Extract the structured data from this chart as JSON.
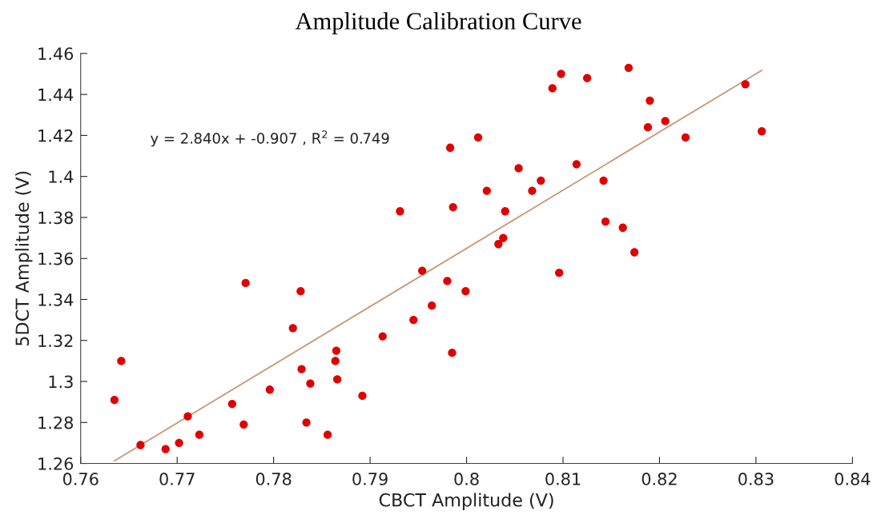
{
  "chart_data": {
    "type": "scatter",
    "title": "Amplitude Calibration Curve",
    "xlabel": "CBCT Amplitude (V)",
    "ylabel": "5DCT Amplitude (V)",
    "annotations": [
      "y = 2.840x + -0.907 , R$^{2}$ = 0.749"
    ],
    "xlim": [
      0.76,
      0.84
    ],
    "xticks": [
      0.76,
      0.77,
      0.78,
      0.79,
      0.8,
      0.81,
      0.82,
      0.83,
      0.84
    ],
    "ylim": [
      1.26,
      1.46
    ],
    "yticks": [
      1.26,
      1.28,
      1.3,
      1.32,
      1.34,
      1.36,
      1.38,
      1.4,
      1.42,
      1.44,
      1.46
    ],
    "grid": false,
    "series": [
      {
        "marker": "circle",
        "color": "#e00000",
        "x": [
          0.7635,
          0.7642,
          0.7662,
          0.7688,
          0.7702,
          0.7711,
          0.7723,
          0.7757,
          0.7769,
          0.7771,
          0.7796,
          0.782,
          0.7828,
          0.7829,
          0.7834,
          0.7838,
          0.7856,
          0.7864,
          0.7865,
          0.7866,
          0.7892,
          0.7913,
          0.7931,
          0.7945,
          0.7954,
          0.7964,
          0.798,
          0.7983,
          0.7985,
          0.7986,
          0.7999,
          0.8012,
          0.8021,
          0.8033,
          0.8038,
          0.804,
          0.8054,
          0.8068,
          0.8077,
          0.8089,
          0.8096,
          0.8098,
          0.8114,
          0.8125,
          0.8142,
          0.8144,
          0.8162,
          0.8168,
          0.8174,
          0.8188,
          0.819,
          0.8206,
          0.8227,
          0.8289,
          0.8306
        ],
        "values": [
          1.291,
          1.31,
          1.269,
          1.267,
          1.27,
          1.283,
          1.274,
          1.289,
          1.279,
          1.348,
          1.296,
          1.326,
          1.344,
          1.306,
          1.28,
          1.299,
          1.274,
          1.31,
          1.315,
          1.301,
          1.293,
          1.322,
          1.383,
          1.33,
          1.354,
          1.337,
          1.349,
          1.414,
          1.314,
          1.385,
          1.344,
          1.419,
          1.393,
          1.367,
          1.37,
          1.383,
          1.404,
          1.393,
          1.398,
          1.443,
          1.353,
          1.45,
          1.406,
          1.448,
          1.398,
          1.378,
          1.375,
          1.453,
          1.363,
          1.424,
          1.437,
          1.427,
          1.419,
          1.445,
          1.422
        ]
      },
      {
        "type": "line",
        "color": "#c89878",
        "marker": "none",
        "line_style": "solid",
        "x": [
          0.7635,
          0.8306
        ],
        "values": [
          1.2613,
          1.4518
        ]
      }
    ]
  }
}
